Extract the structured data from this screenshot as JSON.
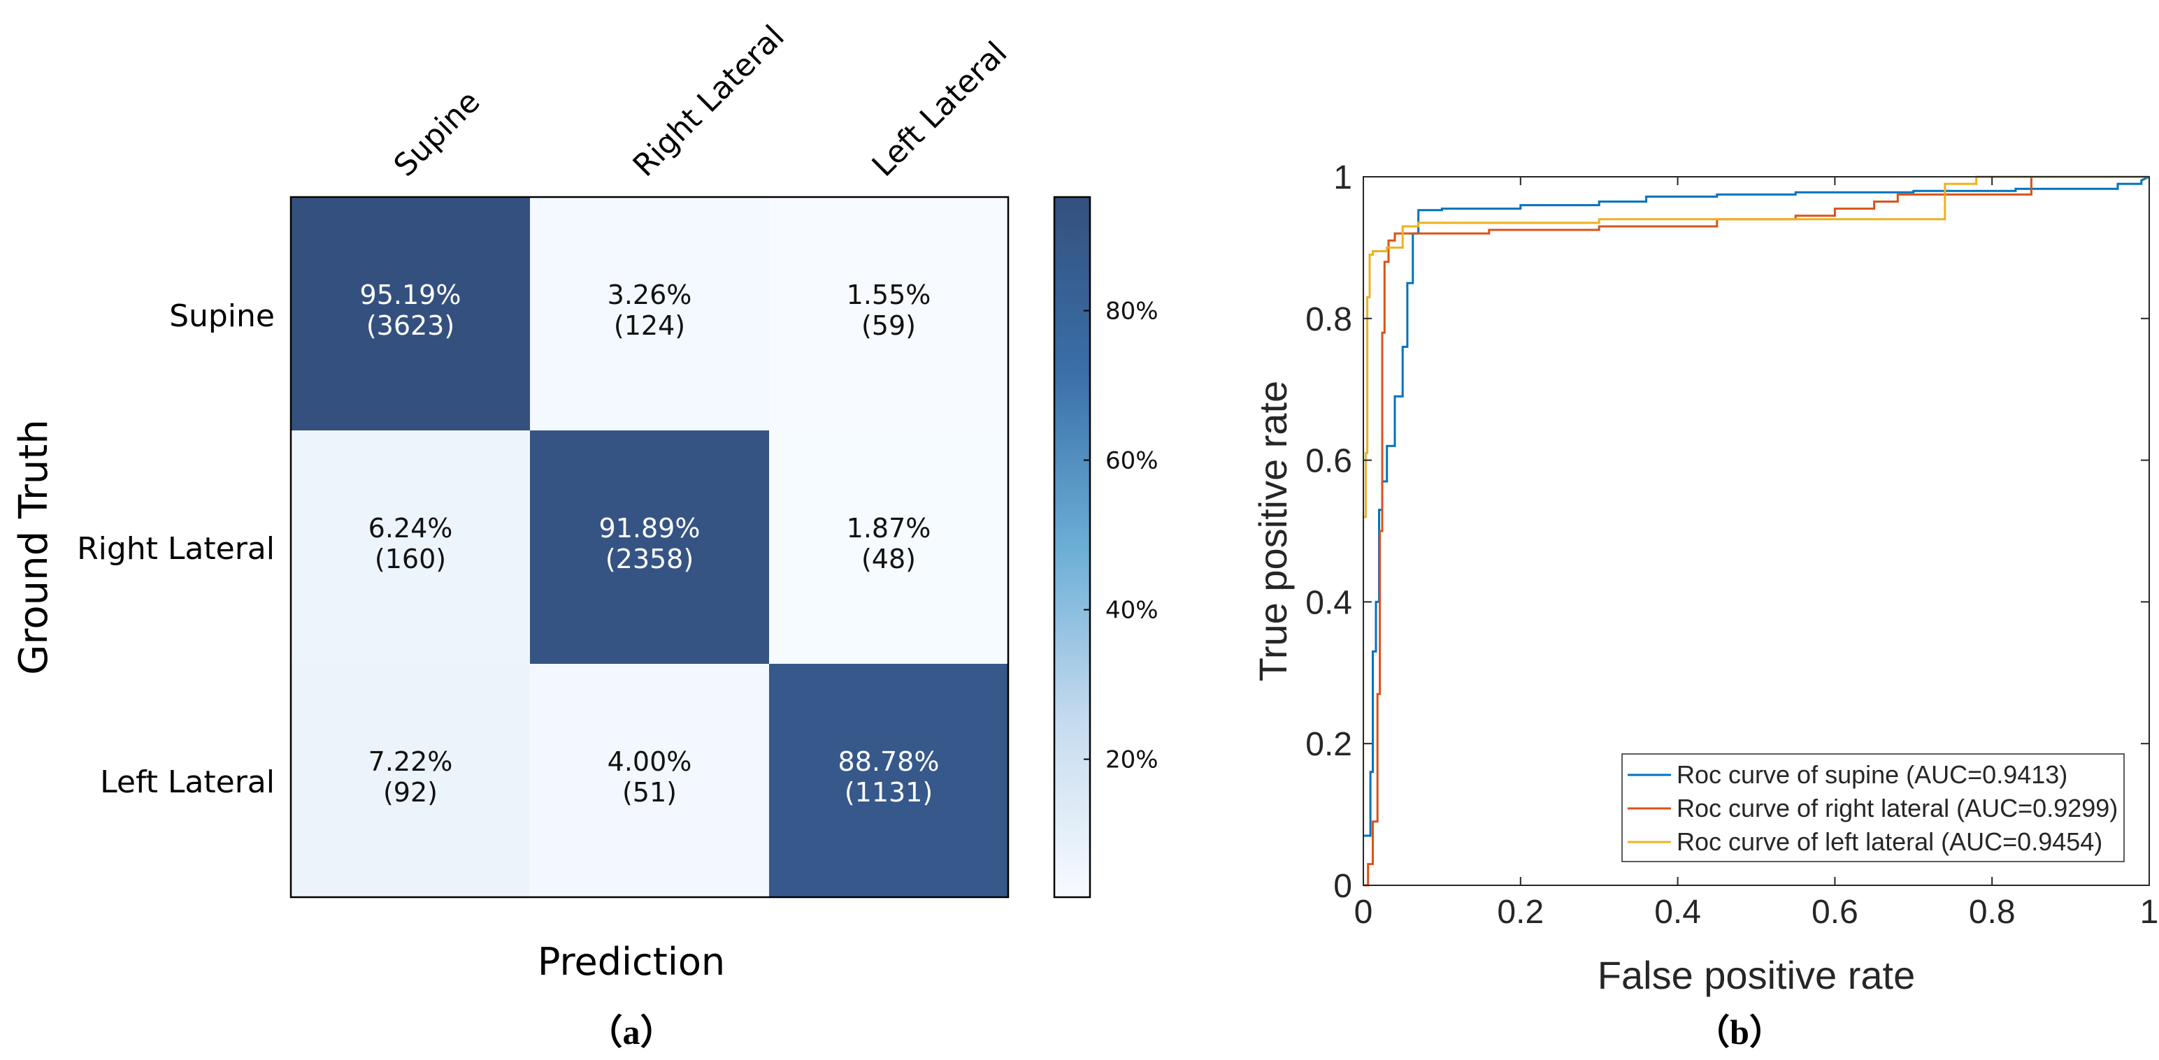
{
  "chart_data": [
    {
      "type": "heatmap",
      "panel_label": "（a）",
      "xlabel": "Prediction",
      "ylabel": "Ground Truth",
      "column_labels": [
        "Supine",
        "Right Lateral",
        "Left Lateral"
      ],
      "row_labels": [
        "Supine",
        "Right Lateral",
        "Left Lateral"
      ],
      "cells": [
        [
          {
            "pct": "95.19%",
            "count": "(3623)",
            "value": 95.19
          },
          {
            "pct": "3.26%",
            "count": "(124)",
            "value": 3.26
          },
          {
            "pct": "1.55%",
            "count": "(59)",
            "value": 1.55
          }
        ],
        [
          {
            "pct": "6.24%",
            "count": "(160)",
            "value": 6.24
          },
          {
            "pct": "91.89%",
            "count": "(2358)",
            "value": 91.89
          },
          {
            "pct": "1.87%",
            "count": "(48)",
            "value": 1.87
          }
        ],
        [
          {
            "pct": "7.22%",
            "count": "(92)",
            "value": 7.22
          },
          {
            "pct": "4.00%",
            "count": "(51)",
            "value": 4.0
          },
          {
            "pct": "88.78%",
            "count": "(1131)",
            "value": 88.78
          }
        ]
      ],
      "colorbar": {
        "range": [
          1.55,
          95.19
        ],
        "ticks": [
          {
            "value": 20,
            "label": "20%"
          },
          {
            "value": 40,
            "label": "40%"
          },
          {
            "value": 60,
            "label": "60%"
          },
          {
            "value": 80,
            "label": "80%"
          }
        ],
        "colors": [
          "#f7fbff",
          "#c6dbef",
          "#6baed6",
          "#3a6fa8",
          "#34507e"
        ]
      }
    },
    {
      "type": "line",
      "panel_label": "（b）",
      "xlabel": "False positive rate",
      "ylabel": "True positive rate",
      "xlim": [
        0,
        1
      ],
      "ylim": [
        0,
        1
      ],
      "x_ticks": [
        {
          "value": 0,
          "label": "0"
        },
        {
          "value": 0.2,
          "label": "0.2"
        },
        {
          "value": 0.4,
          "label": "0.4"
        },
        {
          "value": 0.6,
          "label": "0.6"
        },
        {
          "value": 0.8,
          "label": "0.8"
        },
        {
          "value": 1,
          "label": "1"
        }
      ],
      "y_ticks": [
        {
          "value": 0,
          "label": "0"
        },
        {
          "value": 0.2,
          "label": "0.2"
        },
        {
          "value": 0.4,
          "label": "0.4"
        },
        {
          "value": 0.6,
          "label": "0.6"
        },
        {
          "value": 0.8,
          "label": "0.8"
        },
        {
          "value": 1,
          "label": "1"
        }
      ],
      "legend_position": "bottom-right",
      "series": [
        {
          "name": "Roc curve of supine (AUC=0.9413)",
          "color": "#0072bd",
          "x": [
            0,
            0.009,
            0.009,
            0.012,
            0.012,
            0.016,
            0.016,
            0.02,
            0.02,
            0.024,
            0.024,
            0.03,
            0.03,
            0.04,
            0.04,
            0.05,
            0.05,
            0.056,
            0.056,
            0.063,
            0.063,
            0.07,
            0.07,
            0.1,
            0.1,
            0.2,
            0.2,
            0.3,
            0.3,
            0.36,
            0.36,
            0.45,
            0.45,
            0.55,
            0.55,
            0.7,
            0.7,
            0.83,
            0.83,
            0.96,
            0.96,
            0.99,
            0.99,
            1.0
          ],
          "y": [
            0.07,
            0.07,
            0.16,
            0.16,
            0.33,
            0.33,
            0.4,
            0.4,
            0.53,
            0.53,
            0.57,
            0.57,
            0.62,
            0.62,
            0.69,
            0.69,
            0.76,
            0.76,
            0.85,
            0.85,
            0.92,
            0.92,
            0.953,
            0.953,
            0.955,
            0.955,
            0.96,
            0.96,
            0.965,
            0.965,
            0.972,
            0.972,
            0.975,
            0.975,
            0.978,
            0.978,
            0.98,
            0.98,
            0.983,
            0.983,
            0.99,
            0.99,
            0.995,
            1.0
          ]
        },
        {
          "name": "Roc curve of right lateral (AUC=0.9299)",
          "color": "#d95319",
          "x": [
            0,
            0.006,
            0.006,
            0.012,
            0.012,
            0.018,
            0.018,
            0.021,
            0.021,
            0.024,
            0.024,
            0.027,
            0.027,
            0.032,
            0.032,
            0.04,
            0.04,
            0.16,
            0.16,
            0.3,
            0.3,
            0.45,
            0.45,
            0.55,
            0.55,
            0.6,
            0.6,
            0.65,
            0.65,
            0.68,
            0.68,
            0.85,
            0.85,
            1.0
          ],
          "y": [
            0,
            0,
            0.03,
            0.03,
            0.09,
            0.09,
            0.27,
            0.27,
            0.5,
            0.5,
            0.78,
            0.78,
            0.88,
            0.88,
            0.91,
            0.91,
            0.92,
            0.92,
            0.925,
            0.925,
            0.93,
            0.93,
            0.94,
            0.94,
            0.945,
            0.945,
            0.955,
            0.955,
            0.965,
            0.965,
            0.975,
            0.975,
            1.0,
            1.0
          ]
        },
        {
          "name": "Roc curve of left lateral (AUC=0.9454)",
          "color": "#edb120",
          "x": [
            0,
            0.003,
            0.003,
            0.005,
            0.005,
            0.008,
            0.008,
            0.012,
            0.012,
            0.03,
            0.03,
            0.05,
            0.05,
            0.07,
            0.07,
            0.3,
            0.3,
            0.74,
            0.74,
            0.78,
            0.78,
            1.0
          ],
          "y": [
            0.52,
            0.52,
            0.61,
            0.61,
            0.83,
            0.83,
            0.89,
            0.89,
            0.895,
            0.895,
            0.9,
            0.9,
            0.93,
            0.93,
            0.935,
            0.935,
            0.94,
            0.94,
            0.99,
            0.99,
            1.0,
            1.0
          ]
        }
      ]
    }
  ]
}
